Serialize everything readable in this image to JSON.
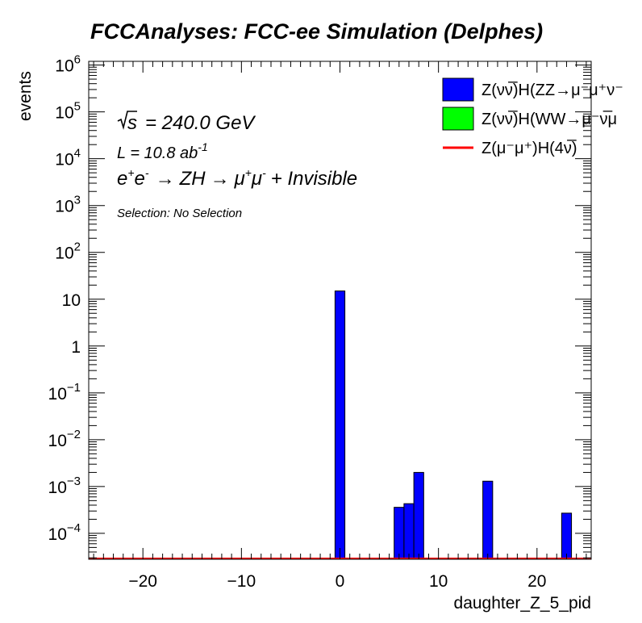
{
  "chart_data": {
    "type": "bar",
    "title": "FCCAnalyses: FCC-ee Simulation (Delphes)",
    "xlabel": "daughter_Z_5_pid",
    "ylabel": "events",
    "xlim": [
      -25.5,
      25.5
    ],
    "ylim": [
      2.8e-05,
      1200000
    ],
    "yscale": "log",
    "grid": false,
    "legend_position": "top-right",
    "x_ticks": [
      -20,
      -10,
      0,
      10,
      20
    ],
    "x_tick_labels": [
      "−20",
      "−10",
      "0",
      "10",
      "20"
    ],
    "y_ticks": [
      0.0001,
      0.001,
      0.01,
      0.1,
      1,
      10,
      100,
      1000,
      10000,
      100000,
      1000000
    ],
    "y_tick_labels": [
      {
        "base": "10",
        "exp": "−4"
      },
      {
        "base": "10",
        "exp": "−3"
      },
      {
        "base": "10",
        "exp": "−2"
      },
      {
        "base": "10",
        "exp": "−1"
      },
      {
        "base": "1",
        "exp": ""
      },
      {
        "base": "10",
        "exp": ""
      },
      {
        "base": "10",
        "exp": "2"
      },
      {
        "base": "10",
        "exp": "3"
      },
      {
        "base": "10",
        "exp": "4"
      },
      {
        "base": "10",
        "exp": "5"
      },
      {
        "base": "10",
        "exp": "6"
      }
    ],
    "bin_width": 1,
    "series": [
      {
        "name": "Z(νν̅)H(ZZ→μ⁻μ⁺νν̅)",
        "color": "#0000ff",
        "style": "filled",
        "bins": [
          {
            "center": 0,
            "value": 15
          },
          {
            "center": 6,
            "value": 0.00036
          },
          {
            "center": 7,
            "value": 0.00043
          },
          {
            "center": 8,
            "value": 0.002
          },
          {
            "center": 15,
            "value": 0.0013
          },
          {
            "center": 23,
            "value": 0.00027
          }
        ]
      },
      {
        "name": "Z(νν̅)H(WW→μ⁻ν̅μ⁺ν)",
        "color": "#00ff00",
        "style": "filled",
        "bins": []
      },
      {
        "name": "Z(μ⁻μ⁺)H(4ν)",
        "color": "#ff0000",
        "style": "line",
        "bins": []
      }
    ],
    "legend": [
      {
        "label": "Z(νν̅)H(ZZ→μ⁻μ⁺ν⁻",
        "color": "#0000ff",
        "style": "box"
      },
      {
        "label": "Z(νν̅)H(WW→μ⁻ν̅μ",
        "color": "#00ff00",
        "style": "box"
      },
      {
        "label": "Z(μ⁻μ⁺)H(4ν̅)",
        "color": "#ff0000",
        "style": "line"
      }
    ],
    "annotations": {
      "sqrt_s": "= 240.0 GeV",
      "sqrt_s_symbol": "s",
      "lumi_prefix": "L = 10.8 ab",
      "lumi_exp": "-1",
      "process": {
        "p1": "e",
        "p1_sup": "+",
        "p2": "e",
        "p2_sup": "-",
        "arrow1": "→",
        "zh": "ZH",
        "arrow2": "→",
        "m1": "μ",
        "m1_sup": "+",
        "m2": "μ",
        "m2_sup": "-",
        "rest": "+ Invisible"
      },
      "selection": "Selection: No Selection"
    }
  }
}
